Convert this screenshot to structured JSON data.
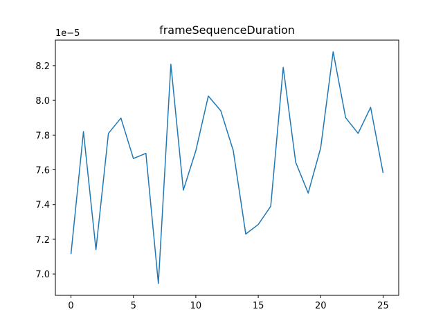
{
  "chart_data": {
    "type": "line",
    "title": "frameSequenceDuration",
    "xlabel": "",
    "ylabel": "",
    "y_offset_label": "1e−5",
    "x": [
      0,
      1,
      2,
      3,
      4,
      5,
      6,
      7,
      8,
      9,
      10,
      11,
      12,
      13,
      14,
      15,
      16,
      17,
      18,
      19,
      20,
      21,
      22,
      23,
      24,
      25
    ],
    "series": [
      {
        "values": [
          7.115,
          7.82,
          7.14,
          7.81,
          7.898,
          7.665,
          7.695,
          6.945,
          8.208,
          7.483,
          7.71,
          8.025,
          7.94,
          7.71,
          7.23,
          7.285,
          7.39,
          8.19,
          7.643,
          7.466,
          7.726,
          8.28,
          7.9,
          7.81,
          7.96,
          7.582
        ]
      }
    ],
    "xlim": [
      -1.25,
      26.25
    ],
    "ylim": [
      6.877,
      8.347
    ],
    "xticks": [
      0,
      5,
      10,
      15,
      20,
      25
    ],
    "yticks": [
      7.0,
      7.2,
      7.4,
      7.6,
      7.8,
      8.0,
      8.2
    ],
    "ytick_labels": [
      "7.0",
      "7.2",
      "7.4",
      "7.6",
      "7.8",
      "8.0",
      "8.2"
    ],
    "grid": false,
    "line_color": "#1f77b4"
  }
}
